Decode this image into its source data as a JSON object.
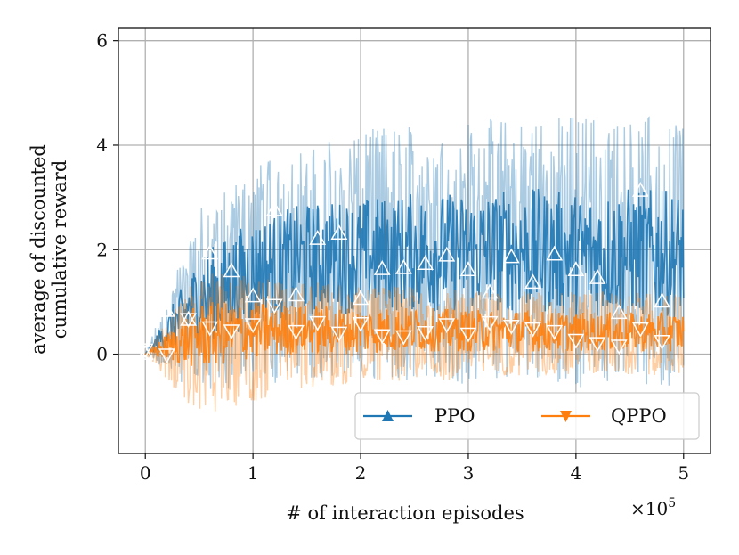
{
  "chart_data": {
    "type": "line",
    "title": "",
    "xlabel": "# of interaction episodes",
    "ylabel_line1": "average of discounted",
    "ylabel_line2": "cumulative reward",
    "x_multiplier": "×10",
    "x_multiplier_exp": "5",
    "xlim": [
      -0.25,
      5.25
    ],
    "ylim": [
      -1.9,
      6.25
    ],
    "xticks": [
      0,
      1,
      2,
      3,
      4,
      5
    ],
    "xtick_labels": [
      "0",
      "1",
      "2",
      "3",
      "4",
      "5"
    ],
    "yticks": [
      0,
      2,
      4,
      6
    ],
    "ytick_labels": [
      "0",
      "2",
      "4",
      "6"
    ],
    "grid": true,
    "legend_position": "lower-right",
    "series": [
      {
        "name": "PPO",
        "color": "#1f77b4",
        "marker": "triangle-up",
        "band_upper": [
          0.0,
          2.8,
          3.6,
          4.0,
          4.3,
          4.4,
          4.5,
          4.5,
          4.6,
          4.5,
          4.7
        ],
        "band_lower": [
          0.0,
          -0.8,
          -0.6,
          -0.5,
          -0.5,
          -0.6,
          -0.6,
          -0.5,
          -0.7,
          -0.6,
          -0.6
        ],
        "core_upper": [
          0.0,
          1.9,
          2.6,
          2.9,
          3.0,
          3.1,
          3.1,
          3.2,
          3.1,
          3.2,
          3.1
        ],
        "core_lower": [
          0.0,
          0.2,
          0.5,
          0.7,
          0.8,
          0.8,
          0.8,
          0.8,
          0.7,
          0.7,
          0.7
        ],
        "markers_x": [
          0,
          0.2,
          0.4,
          0.6,
          0.8,
          1.0,
          1.2,
          1.4,
          1.6,
          1.8,
          2.0,
          2.2,
          2.4,
          2.6,
          2.8,
          3.0,
          3.2,
          3.4,
          3.6,
          3.8,
          4.0,
          4.2,
          4.4,
          4.6,
          4.8
        ],
        "markers_y": [
          0.0,
          0.82,
          0.65,
          1.92,
          1.58,
          1.1,
          2.75,
          1.12,
          2.2,
          2.3,
          1.05,
          1.62,
          1.64,
          1.72,
          1.88,
          1.6,
          1.17,
          1.85,
          1.36,
          1.9,
          1.6,
          1.45,
          0.78,
          3.12,
          1.0
        ]
      },
      {
        "name": "QPPO",
        "color": "#ff7f0e",
        "marker": "triangle-down",
        "band_upper": [
          0.0,
          1.6,
          1.5,
          1.4,
          1.3,
          1.3,
          1.2,
          1.2,
          1.2,
          1.2,
          1.1
        ],
        "band_lower": [
          0.0,
          -1.2,
          -0.9,
          -0.7,
          -0.6,
          -0.5,
          -0.5,
          -0.4,
          -0.4,
          -0.4,
          -0.4
        ],
        "core_upper": [
          0.0,
          1.0,
          1.0,
          0.95,
          0.9,
          0.9,
          0.85,
          0.85,
          0.8,
          0.8,
          0.8
        ],
        "core_lower": [
          0.0,
          -0.3,
          -0.1,
          0.0,
          0.0,
          0.05,
          0.05,
          0.05,
          0.05,
          0.05,
          0.05
        ],
        "markers_x": [
          0,
          0.2,
          0.4,
          0.6,
          0.8,
          1.0,
          1.2,
          1.4,
          1.6,
          1.8,
          2.0,
          2.2,
          2.4,
          2.6,
          2.8,
          3.0,
          3.2,
          3.4,
          3.6,
          3.8,
          4.0,
          4.2,
          4.4,
          4.6,
          4.8
        ],
        "markers_y": [
          0.1,
          0.0,
          0.68,
          0.52,
          0.46,
          0.58,
          0.95,
          0.45,
          0.62,
          0.42,
          0.6,
          0.37,
          0.35,
          0.43,
          0.58,
          0.4,
          0.62,
          0.55,
          0.5,
          0.45,
          0.28,
          0.22,
          0.17,
          0.5,
          0.26
        ]
      }
    ]
  }
}
